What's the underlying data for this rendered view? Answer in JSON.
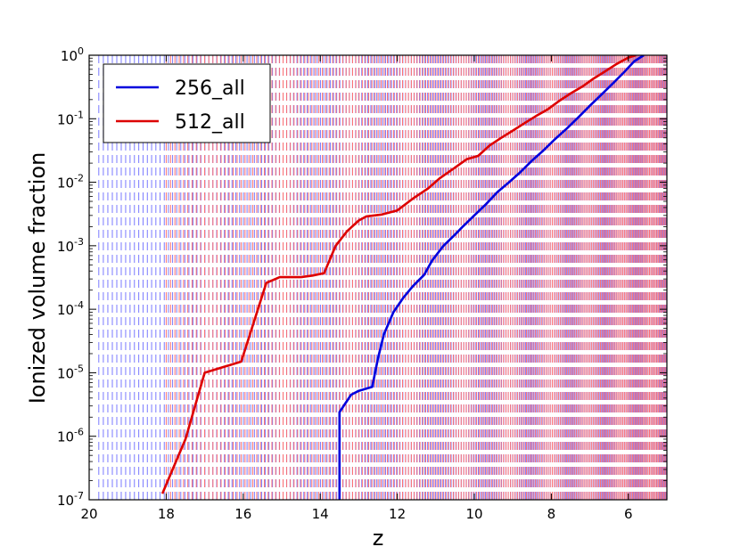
{
  "chart_data": {
    "type": "line",
    "xlabel": "z",
    "ylabel": "Ionized volume fraction",
    "x_reversed": true,
    "xlim": [
      20,
      5
    ],
    "ylim_log10": [
      -7,
      0
    ],
    "y_scale": "log",
    "grid": false,
    "legend_position": "top-left",
    "x_ticks": [
      20,
      18,
      16,
      14,
      12,
      10,
      8,
      6
    ],
    "x_tick_labels": [
      "20",
      "18",
      "16",
      "14",
      "12",
      "10",
      "8",
      "6"
    ],
    "y_ticks": [
      {
        "base": "10",
        "exp": "-7"
      },
      {
        "base": "10",
        "exp": "-6"
      },
      {
        "base": "10",
        "exp": "-5"
      },
      {
        "base": "10",
        "exp": "-4"
      },
      {
        "base": "10",
        "exp": "-3"
      },
      {
        "base": "10",
        "exp": "-2"
      },
      {
        "base": "10",
        "exp": "-1"
      },
      {
        "base": "10",
        "exp": "0"
      }
    ],
    "series": [
      {
        "name": "256_all",
        "color": "#0000dd",
        "points": [
          [
            13.5,
            1e-07
          ],
          [
            13.5,
            2.4e-06
          ],
          [
            13.2,
            4.5e-06
          ],
          [
            13.0,
            5.2e-06
          ],
          [
            12.65,
            6e-06
          ],
          [
            12.5,
            1.7e-05
          ],
          [
            12.35,
            4e-05
          ],
          [
            12.1,
            9e-05
          ],
          [
            11.85,
            0.00015
          ],
          [
            11.6,
            0.00023
          ],
          [
            11.3,
            0.00035
          ],
          [
            11.1,
            0.00058
          ],
          [
            10.8,
            0.001
          ],
          [
            10.5,
            0.0015
          ],
          [
            10.3,
            0.002
          ],
          [
            10.0,
            0.003
          ],
          [
            9.7,
            0.0045
          ],
          [
            9.4,
            0.007
          ],
          [
            9.1,
            0.01
          ],
          [
            8.8,
            0.0145
          ],
          [
            8.5,
            0.022
          ],
          [
            8.2,
            0.032
          ],
          [
            7.9,
            0.048
          ],
          [
            7.6,
            0.07
          ],
          [
            7.3,
            0.105
          ],
          [
            7.0,
            0.16
          ],
          [
            6.7,
            0.24
          ],
          [
            6.4,
            0.36
          ],
          [
            6.1,
            0.55
          ],
          [
            5.85,
            0.8
          ],
          [
            5.6,
            1.0
          ]
        ]
      },
      {
        "name": "512_all",
        "color": "#dd0000",
        "points": [
          [
            18.1,
            1.25e-07
          ],
          [
            17.5,
            9e-07
          ],
          [
            17.0,
            1e-05
          ],
          [
            16.05,
            1.5e-05
          ],
          [
            15.4,
            0.00026
          ],
          [
            15.05,
            0.00032
          ],
          [
            14.5,
            0.00032
          ],
          [
            14.2,
            0.00034
          ],
          [
            13.9,
            0.00037
          ],
          [
            13.6,
            0.001
          ],
          [
            13.3,
            0.0017
          ],
          [
            13.0,
            0.0025
          ],
          [
            12.8,
            0.0029
          ],
          [
            12.4,
            0.0031
          ],
          [
            12.0,
            0.0036
          ],
          [
            11.6,
            0.0055
          ],
          [
            11.2,
            0.008
          ],
          [
            10.9,
            0.0115
          ],
          [
            10.5,
            0.017
          ],
          [
            10.2,
            0.023
          ],
          [
            9.9,
            0.026
          ],
          [
            9.6,
            0.038
          ],
          [
            9.3,
            0.05
          ],
          [
            9.0,
            0.065
          ],
          [
            8.7,
            0.085
          ],
          [
            8.4,
            0.11
          ],
          [
            8.1,
            0.14
          ],
          [
            7.8,
            0.19
          ],
          [
            7.5,
            0.25
          ],
          [
            7.2,
            0.32
          ],
          [
            6.9,
            0.43
          ],
          [
            6.6,
            0.56
          ],
          [
            6.3,
            0.73
          ],
          [
            6.0,
            0.92
          ],
          [
            5.8,
            1.0
          ]
        ]
      }
    ],
    "vlines": {
      "red_start_z": 18.0,
      "blue_start_z": 19.75,
      "red_color": "#ff7070",
      "blue_color": "#7a7aff"
    }
  }
}
